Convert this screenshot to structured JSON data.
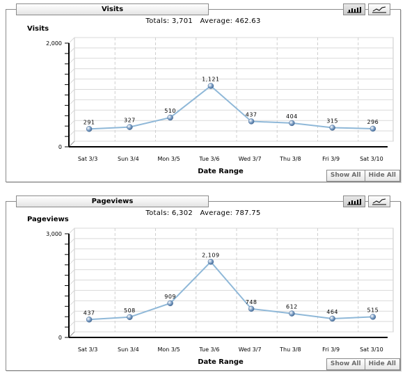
{
  "panels": [
    {
      "tab_title": "Visits",
      "totals_label": "Totals:",
      "totals_value": "3,701",
      "average_label": "Average:",
      "average_value": "462.63",
      "show_all_label": "Show All",
      "hide_all_label": "Hide All"
    },
    {
      "tab_title": "Pageviews",
      "totals_label": "Totals:",
      "totals_value": "6,302",
      "average_label": "Average:",
      "average_value": "787.75",
      "show_all_label": "Show All",
      "hide_all_label": "Hide All"
    }
  ],
  "view_toggle": {
    "bar_icon": "bar-chart-icon",
    "line_icon": "line-chart-icon",
    "active": "bar"
  },
  "colors": {
    "line": "#8fb8d8",
    "point": "#7d9fc6",
    "grid": "#d9d9d9",
    "axis": "#000000"
  },
  "chart_data": [
    {
      "type": "line",
      "title": "",
      "ylabel": "Visits",
      "xlabel": "Date Range",
      "categories": [
        "Sat 3/3",
        "Sun 3/4",
        "Mon 3/5",
        "Tue 3/6",
        "Wed 3/7",
        "Thu 3/8",
        "Fri 3/9",
        "Sat 3/10"
      ],
      "series": [
        {
          "values": [
            291,
            327,
            510,
            1121,
            437,
            404,
            315,
            296
          ]
        }
      ],
      "value_labels": [
        "291",
        "327",
        "510",
        "1,121",
        "437",
        "404",
        "315",
        "296"
      ],
      "ylim": [
        0,
        2000
      ],
      "yticks": [
        "0",
        "2,000"
      ],
      "grid": true
    },
    {
      "type": "line",
      "title": "",
      "ylabel": "Pageviews",
      "xlabel": "Date Range",
      "categories": [
        "Sat 3/3",
        "Sun 3/4",
        "Mon 3/5",
        "Tue 3/6",
        "Wed 3/7",
        "Thu 3/8",
        "Fri 3/9",
        "Sat 3/10"
      ],
      "series": [
        {
          "values": [
            437,
            508,
            909,
            2109,
            748,
            612,
            464,
            515
          ]
        }
      ],
      "value_labels": [
        "437",
        "508",
        "909",
        "2,109",
        "748",
        "612",
        "464",
        "515"
      ],
      "ylim": [
        0,
        3000
      ],
      "yticks": [
        "0",
        "3,000"
      ],
      "grid": true
    }
  ]
}
